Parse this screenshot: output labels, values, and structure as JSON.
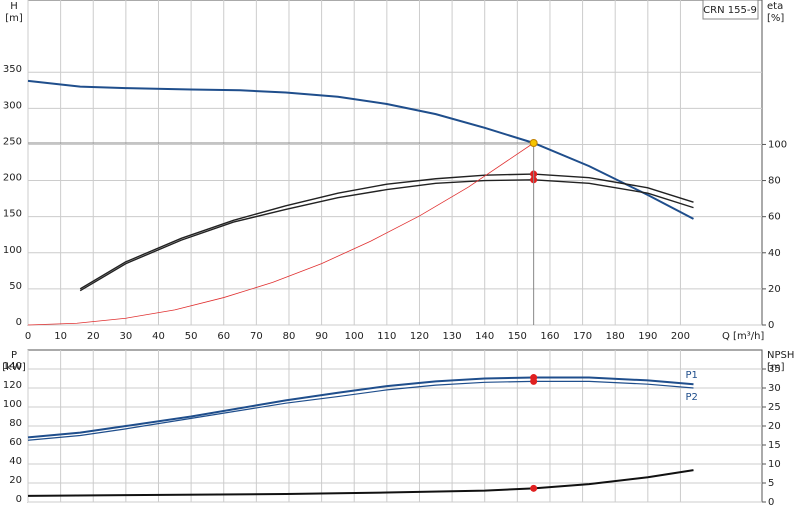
{
  "chart_data": [
    {
      "type": "line",
      "title": "CRN 155-9",
      "x_label": "Q [m³/h]",
      "y_label": "H",
      "y_unit": "[m]",
      "y2_label": "eta",
      "y2_unit": "[%]",
      "xlim": [
        0,
        225
      ],
      "xticks": [
        0,
        10,
        20,
        30,
        40,
        50,
        60,
        70,
        80,
        90,
        100,
        110,
        120,
        130,
        140,
        150,
        160,
        170,
        180,
        190,
        200
      ],
      "ylim": [
        0,
        450
      ],
      "yticks": [
        0,
        50,
        100,
        150,
        200,
        250,
        300,
        350
      ],
      "y2lim": [
        0,
        180
      ],
      "y2ticks": [
        0,
        20,
        40,
        60,
        80,
        100
      ],
      "grid": true,
      "series": [
        {
          "color": "#1f4e8c",
          "width": 2,
          "x": [
            0,
            16,
            30,
            50,
            65,
            79,
            95,
            110,
            125,
            140,
            155,
            172,
            190,
            204
          ],
          "values": [
            338,
            330,
            328,
            326,
            325,
            322,
            316,
            306,
            292,
            273,
            252,
            220,
            180,
            147
          ]
        },
        {
          "color": "#222222",
          "width": 1.4,
          "axis": "y2",
          "x": [
            16,
            30,
            47,
            63,
            79,
            95,
            110,
            125,
            140,
            155,
            172,
            190,
            204
          ],
          "values": [
            20,
            35,
            48,
            58,
            66,
            73,
            78,
            81,
            83,
            83.6,
            81.6,
            76,
            68
          ]
        },
        {
          "color": "#222222",
          "width": 1.4,
          "axis": "y2",
          "x": [
            16,
            30,
            47,
            63,
            79,
            95,
            110,
            125,
            140,
            155,
            172,
            190,
            204
          ],
          "values": [
            19,
            34,
            47,
            57,
            64,
            70.5,
            75,
            78.5,
            80,
            80.4,
            78.5,
            73,
            65
          ]
        },
        {
          "color": "#e03030",
          "width": 0.8,
          "x": [
            0,
            15,
            30,
            45,
            60,
            75,
            90,
            105,
            120,
            135,
            155
          ],
          "values": [
            0,
            2.4,
            9.4,
            21,
            38,
            59,
            85,
            116,
            151,
            191,
            252
          ]
        },
        {
          "color": "#e02020",
          "marker": true,
          "axis": "y2",
          "x": [
            155,
            155
          ],
          "values": [
            83.6,
            80.4
          ]
        },
        {
          "color": "#f5c400",
          "marker": true,
          "drop_lines": true,
          "x": [
            155
          ],
          "values": [
            252
          ]
        }
      ]
    },
    {
      "type": "line",
      "y_label": "P",
      "y_unit": "[kW]",
      "y2_label": "NPSH",
      "y2_unit": "[m]",
      "xlim": [
        0,
        225
      ],
      "ylim": [
        0,
        160
      ],
      "yticks": [
        0,
        20,
        40,
        60,
        80,
        100,
        120,
        140
      ],
      "y2lim": [
        0,
        40
      ],
      "y2ticks": [
        0,
        5,
        10,
        15,
        20,
        25,
        30,
        35
      ],
      "grid": true,
      "series": [
        {
          "name": "P1",
          "color": "#1f4e8c",
          "width": 2,
          "x": [
            0,
            16,
            30,
            50,
            79,
            95,
            110,
            125,
            140,
            155,
            172,
            190,
            204
          ],
          "values": [
            68,
            73,
            80,
            90,
            107,
            115,
            122,
            127,
            130,
            131,
            131,
            128,
            124
          ]
        },
        {
          "name": "P2",
          "color": "#1f4e8c",
          "width": 1.2,
          "x": [
            0,
            16,
            30,
            50,
            79,
            95,
            110,
            125,
            140,
            155,
            172,
            190,
            204
          ],
          "values": [
            65,
            70,
            77,
            88,
            104,
            111,
            118,
            123,
            126,
            127,
            127,
            124,
            120
          ]
        },
        {
          "color": "#111111",
          "width": 2,
          "axis": "y2",
          "x": [
            0,
            30,
            79,
            110,
            140,
            155,
            172,
            190,
            204
          ],
          "values": [
            1.6,
            1.8,
            2.1,
            2.5,
            3,
            3.6,
            4.7,
            6.5,
            8.4
          ]
        },
        {
          "color": "#e02020",
          "marker": true,
          "x": [
            155,
            155
          ],
          "values": [
            131,
            127
          ]
        },
        {
          "color": "#e02020",
          "marker": true,
          "axis": "y2",
          "x": [
            155
          ],
          "values": [
            3.6
          ]
        }
      ]
    }
  ]
}
